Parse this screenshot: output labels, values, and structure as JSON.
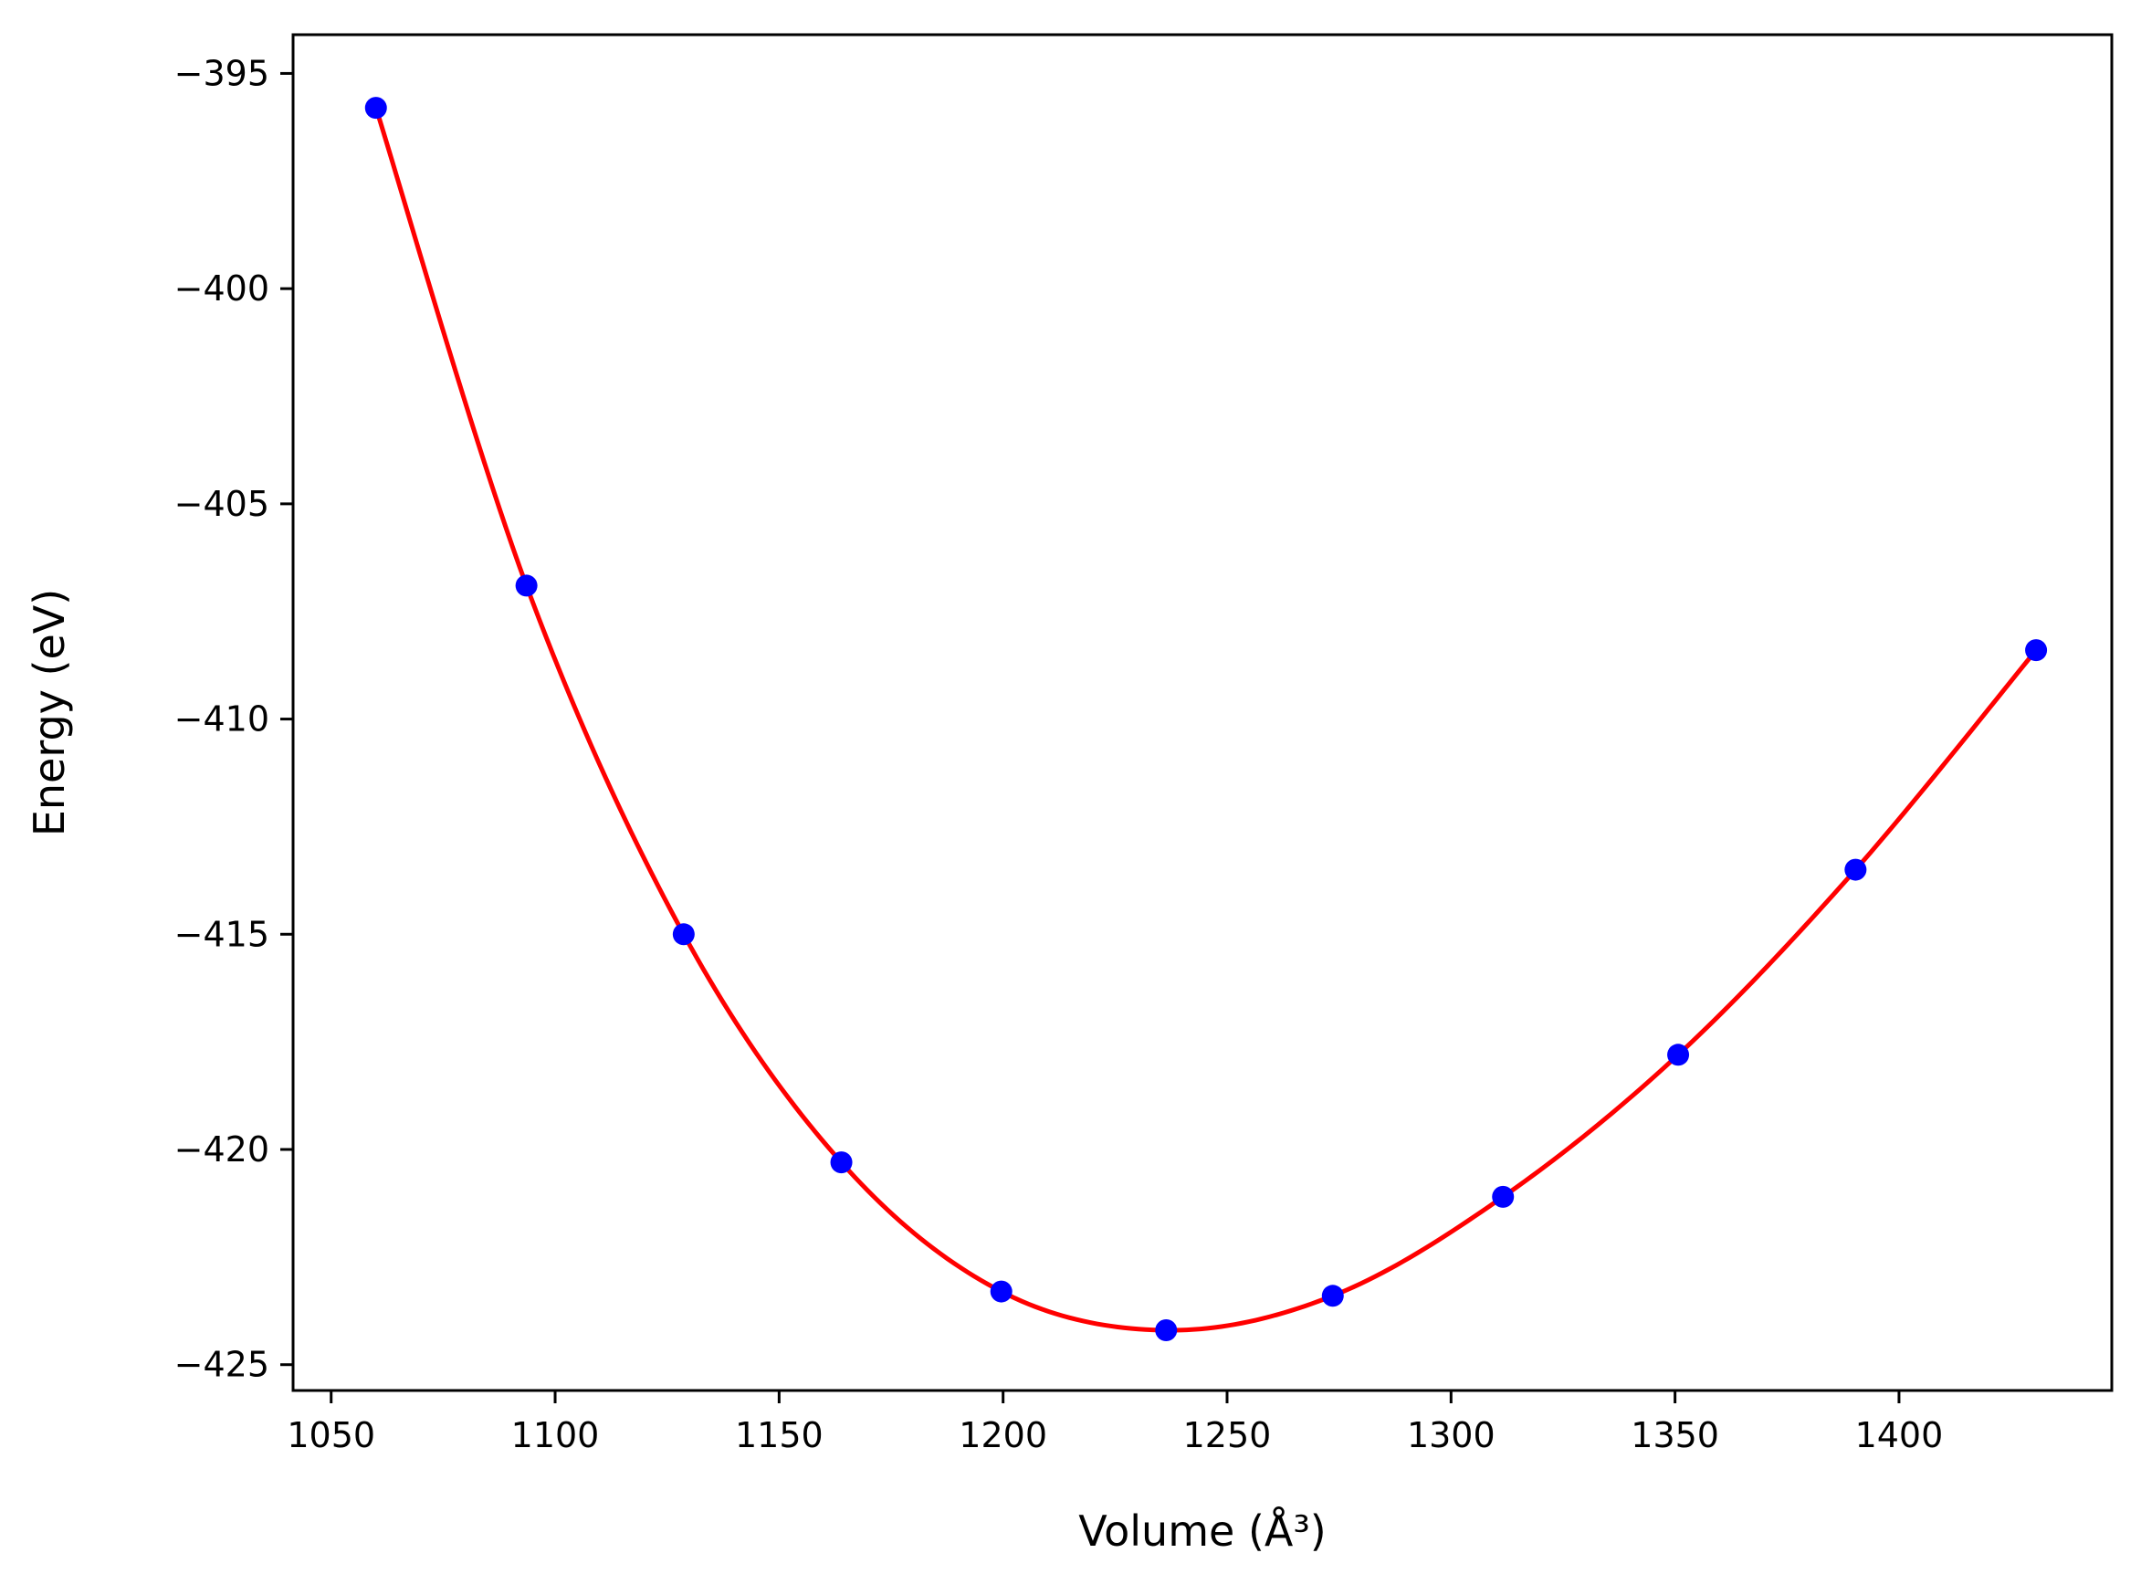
{
  "chart_data": {
    "type": "scatter",
    "xlabel": "Volume (Å³)",
    "ylabel": "Energy (eV)",
    "xlim": [
      1041.5,
      1447.5
    ],
    "ylim": [
      -425.6,
      -394.1
    ],
    "xticks": [
      1050,
      1100,
      1150,
      1200,
      1250,
      1300,
      1350,
      1400
    ],
    "xtick_labels": [
      "1050",
      "1100",
      "1150",
      "1200",
      "1250",
      "1300",
      "1350",
      "1400"
    ],
    "yticks": [
      -395,
      -400,
      -405,
      -410,
      -415,
      -420,
      -425
    ],
    "ytick_labels": [
      "−395",
      "−400",
      "−405",
      "−410",
      "−415",
      "−420",
      "−425"
    ],
    "grid": false,
    "series": [
      {
        "kind": "points",
        "color": "#0000ff",
        "x": [
          1060,
          1093.6,
          1128.7,
          1163.9,
          1199.6,
          1236.4,
          1273.6,
          1311.6,
          1350.7,
          1390.3,
          1430.6
        ],
        "y": [
          -395.8,
          -406.9,
          -415.0,
          -420.3,
          -423.3,
          -424.2,
          -423.4,
          -421.1,
          -417.8,
          -413.5,
          -408.4
        ]
      },
      {
        "kind": "fit",
        "color": "#ff0000",
        "x": [
          1060,
          1093.6,
          1128.7,
          1163.9,
          1199.6,
          1236.4,
          1273.6,
          1311.6,
          1350.7,
          1390.3,
          1430.6
        ],
        "y": [
          -395.8,
          -406.9,
          -415.0,
          -420.3,
          -423.3,
          -424.2,
          -423.4,
          -421.1,
          -417.8,
          -413.5,
          -408.4
        ]
      }
    ]
  }
}
